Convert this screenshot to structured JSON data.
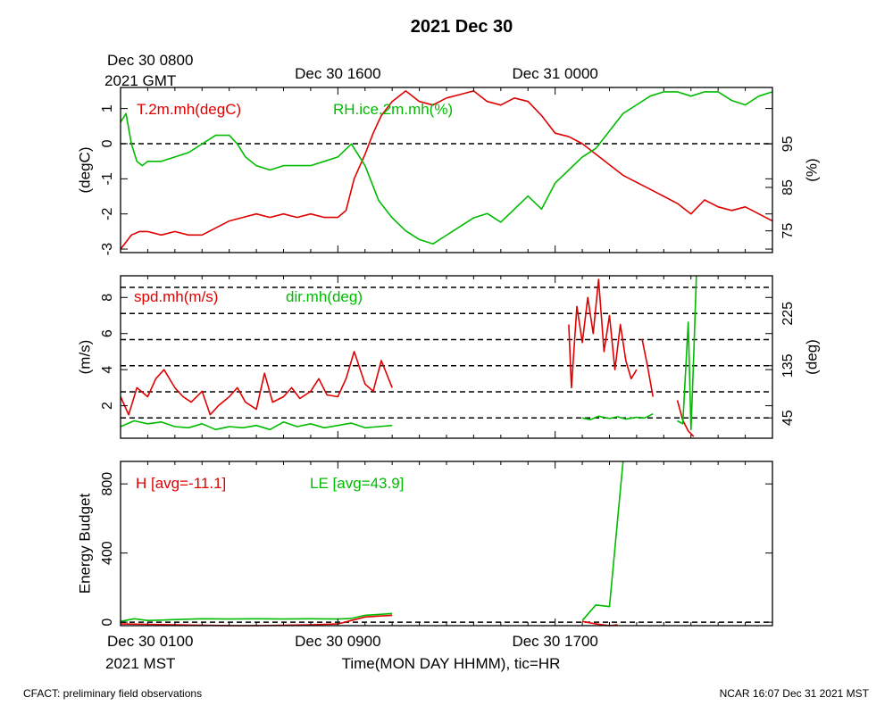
{
  "title": "2021 Dec 30",
  "footer": {
    "left": "CFACT: preliminary field observations",
    "right": "NCAR 16:07 Dec 31 2021 MST"
  },
  "top_axis": {
    "first_line1": "Dec 30 0800",
    "first_line2": "2021 GMT",
    "ticks": [
      {
        "hour": 0,
        "label": "Dec 30 0800"
      },
      {
        "hour": 8,
        "label": "Dec 30 1600"
      },
      {
        "hour": 16,
        "label": "Dec 31 0000"
      }
    ]
  },
  "bottom_axis": {
    "first_line1": "Dec 30 0100",
    "first_line2": "2021 MST",
    "xlabel": "Time(MON DAY HHMM), tic=HR",
    "ticks": [
      {
        "hour": 0,
        "label": "Dec 30 0100"
      },
      {
        "hour": 8,
        "label": "Dec 30 0900"
      },
      {
        "hour": 16,
        "label": "Dec 30 1700"
      }
    ]
  },
  "colors": {
    "red": "#e00000",
    "green": "#00bb00",
    "black": "#000000"
  },
  "chart_data": [
    {
      "type": "line",
      "id": "temp-rh",
      "xlim": [
        0,
        24
      ],
      "ylabel_left": "(degC)",
      "ylabel_right": "(%)",
      "ylim_left": [
        -3.1,
        1.6
      ],
      "ylim_right": [
        70,
        108
      ],
      "yticks_left": [
        1,
        0,
        -1,
        -2,
        -3
      ],
      "yticks_right": [
        95,
        85,
        75
      ],
      "hlines_left": [
        0
      ],
      "series": [
        {
          "name": "T.2m.mh(degC)",
          "color": "red",
          "axis": "left",
          "x": [
            0,
            0.2,
            0.4,
            0.7,
            1,
            1.5,
            2,
            2.5,
            3,
            3.5,
            4,
            4.5,
            5,
            5.5,
            6,
            6.5,
            7,
            7.5,
            8,
            8.3,
            8.6,
            9,
            9.3,
            9.6,
            10,
            10.5,
            11,
            11.5,
            12,
            12.5,
            13,
            13.5,
            14,
            14.5,
            15,
            15.5,
            16,
            16.5,
            17,
            17.5,
            18,
            18.5,
            19,
            19.5,
            20,
            20.5,
            21,
            21.5,
            22,
            22.5,
            23,
            23.5,
            24
          ],
          "y": [
            -3,
            -2.8,
            -2.6,
            -2.5,
            -2.5,
            -2.6,
            -2.5,
            -2.6,
            -2.6,
            -2.4,
            -2.2,
            -2.1,
            -2,
            -2.1,
            -2,
            -2.1,
            -2,
            -2.1,
            -2.1,
            -1.9,
            -1,
            -0.3,
            0.3,
            0.8,
            1.2,
            1.5,
            1.2,
            1.1,
            1.3,
            1.4,
            1.5,
            1.2,
            1.1,
            1.3,
            1.2,
            0.8,
            0.3,
            0.2,
            0,
            -0.3,
            -0.6,
            -0.9,
            -1.1,
            -1.3,
            -1.5,
            -1.7,
            -2,
            -1.6,
            -1.8,
            -1.9,
            -1.8,
            -2,
            -2.2
          ]
        },
        {
          "name": "RH.ice.2m.mh(%)",
          "color": "green",
          "axis": "right",
          "x": [
            0,
            0.2,
            0.4,
            0.6,
            0.8,
            1,
            1.5,
            2,
            2.5,
            3,
            3.5,
            4,
            4.3,
            4.6,
            5,
            5.5,
            6,
            6.5,
            7,
            7.5,
            8,
            8.5,
            9,
            9.5,
            10,
            10.5,
            11,
            11.5,
            12,
            12.5,
            13,
            13.5,
            14,
            14.5,
            15,
            15.5,
            16,
            16.5,
            17,
            17.5,
            18,
            18.5,
            19,
            19.5,
            20,
            20.5,
            21,
            21.5,
            22,
            22.5,
            23,
            23.5,
            24
          ],
          "y": [
            100,
            102,
            95,
            91,
            90,
            91,
            91,
            92,
            93,
            95,
            97,
            97,
            95,
            92,
            90,
            89,
            90,
            90,
            90,
            91,
            92,
            95,
            90,
            82,
            78,
            75,
            73,
            72,
            74,
            76,
            78,
            79,
            77,
            80,
            83,
            80,
            86,
            89,
            92,
            94,
            98,
            102,
            104,
            106,
            107,
            107,
            106,
            107,
            107,
            105,
            104,
            106,
            107
          ]
        }
      ]
    },
    {
      "type": "line",
      "id": "wind",
      "xlim": [
        0,
        24
      ],
      "ylabel_left": "(m/s)",
      "ylabel_right": "(deg)",
      "ylim_left": [
        0.2,
        9.2
      ],
      "ylim_right": [
        10,
        290
      ],
      "yticks_left": [
        2,
        4,
        6,
        8
      ],
      "yticks_right": [
        45,
        135,
        225
      ],
      "hlines_right": [
        45,
        90,
        135,
        180,
        225,
        270
      ],
      "series": [
        {
          "name": "spd.mh(m/s)",
          "color": "red",
          "axis": "left",
          "x": [
            0,
            0.3,
            0.6,
            1,
            1.3,
            1.6,
            2,
            2.3,
            2.6,
            3,
            3.3,
            3.6,
            4,
            4.3,
            4.6,
            5,
            5.3,
            5.6,
            6,
            6.3,
            6.6,
            7,
            7.3,
            7.6,
            8,
            8.3,
            8.6,
            9,
            9.3,
            9.6,
            10
          ],
          "y": [
            2.5,
            1.5,
            3,
            2.5,
            3.5,
            4,
            3,
            2.5,
            2.2,
            2.8,
            1.5,
            2,
            2.5,
            3,
            2.2,
            1.8,
            3.8,
            2.2,
            2.5,
            3,
            2.4,
            2.8,
            3.5,
            2.6,
            2.5,
            3.5,
            5,
            3.2,
            2.8,
            4.5,
            3
          ]
        },
        {
          "name": "",
          "color": "red",
          "axis": "left",
          "x": [
            16.5,
            16.6,
            16.8,
            17,
            17.2,
            17.4,
            17.6,
            17.8,
            18,
            18.2,
            18.4,
            18.6,
            18.8,
            19
          ],
          "y": [
            6.5,
            3,
            7.5,
            5.5,
            8,
            6,
            9,
            5,
            7,
            4,
            6.5,
            4.5,
            3.5,
            4
          ]
        },
        {
          "name": "",
          "color": "red",
          "axis": "left",
          "x": [
            19.2,
            19.4,
            19.6
          ],
          "y": [
            5.7,
            4.2,
            2.5
          ]
        },
        {
          "name": "",
          "color": "red",
          "axis": "left",
          "x": [
            20.5,
            20.7,
            20.9,
            21.1
          ],
          "y": [
            2.3,
            1.2,
            0.6,
            0.3
          ]
        },
        {
          "name": "dir.mh(deg)",
          "color": "green",
          "axis": "right",
          "x": [
            0,
            0.5,
            1,
            1.5,
            2,
            2.5,
            3,
            3.5,
            4,
            4.5,
            5,
            5.5,
            6,
            6.5,
            7,
            7.5,
            8,
            8.5,
            9,
            9.5,
            10
          ],
          "y": [
            30,
            40,
            35,
            38,
            30,
            28,
            35,
            25,
            30,
            28,
            32,
            25,
            38,
            30,
            35,
            28,
            32,
            36,
            28,
            30,
            32
          ]
        },
        {
          "name": "",
          "color": "green",
          "axis": "right",
          "x": [
            17,
            17.3,
            17.6,
            18,
            18.3,
            18.6,
            19,
            19.3,
            19.6
          ],
          "y": [
            45,
            42,
            48,
            44,
            47,
            43,
            46,
            45,
            52
          ]
        },
        {
          "name": "",
          "color": "green",
          "axis": "right",
          "x": [
            20.5,
            20.7,
            20.9,
            21,
            21.1,
            21.2
          ],
          "y": [
            40,
            35,
            210,
            25,
            150,
            290
          ]
        }
      ]
    },
    {
      "type": "line",
      "id": "energy",
      "xlim": [
        0,
        24
      ],
      "ylabel_left": "Energy Budget",
      "ylim_left": [
        -20,
        930
      ],
      "yticks_left": [
        0,
        400,
        800
      ],
      "hlines_left": [
        0
      ],
      "series": [
        {
          "name": "H [avg=-11.1]",
          "color": "red",
          "axis": "left",
          "x": [
            0,
            1,
            2,
            3,
            4,
            5,
            6,
            7,
            8,
            8.5,
            9,
            9.5,
            10
          ],
          "y": [
            -10,
            -12,
            -15,
            -18,
            -20,
            -20,
            -18,
            -15,
            -10,
            10,
            30,
            35,
            40
          ]
        },
        {
          "name": "",
          "color": "red",
          "axis": "left",
          "x": [
            17,
            17.5,
            18,
            18.3
          ],
          "y": [
            5,
            -10,
            -20,
            -15
          ]
        },
        {
          "name": "LE [avg=43.9]",
          "color": "green",
          "axis": "left",
          "x": [
            0,
            0.5,
            1,
            1.5,
            2,
            3,
            4,
            5,
            6,
            7,
            8,
            8.5,
            9,
            9.5,
            10
          ],
          "y": [
            5,
            20,
            10,
            12,
            15,
            20,
            18,
            20,
            18,
            20,
            18,
            22,
            40,
            45,
            50
          ]
        },
        {
          "name": "",
          "color": "green",
          "axis": "left",
          "x": [
            17,
            17.5,
            18,
            18.5
          ],
          "y": [
            10,
            100,
            90,
            930
          ]
        }
      ]
    }
  ]
}
